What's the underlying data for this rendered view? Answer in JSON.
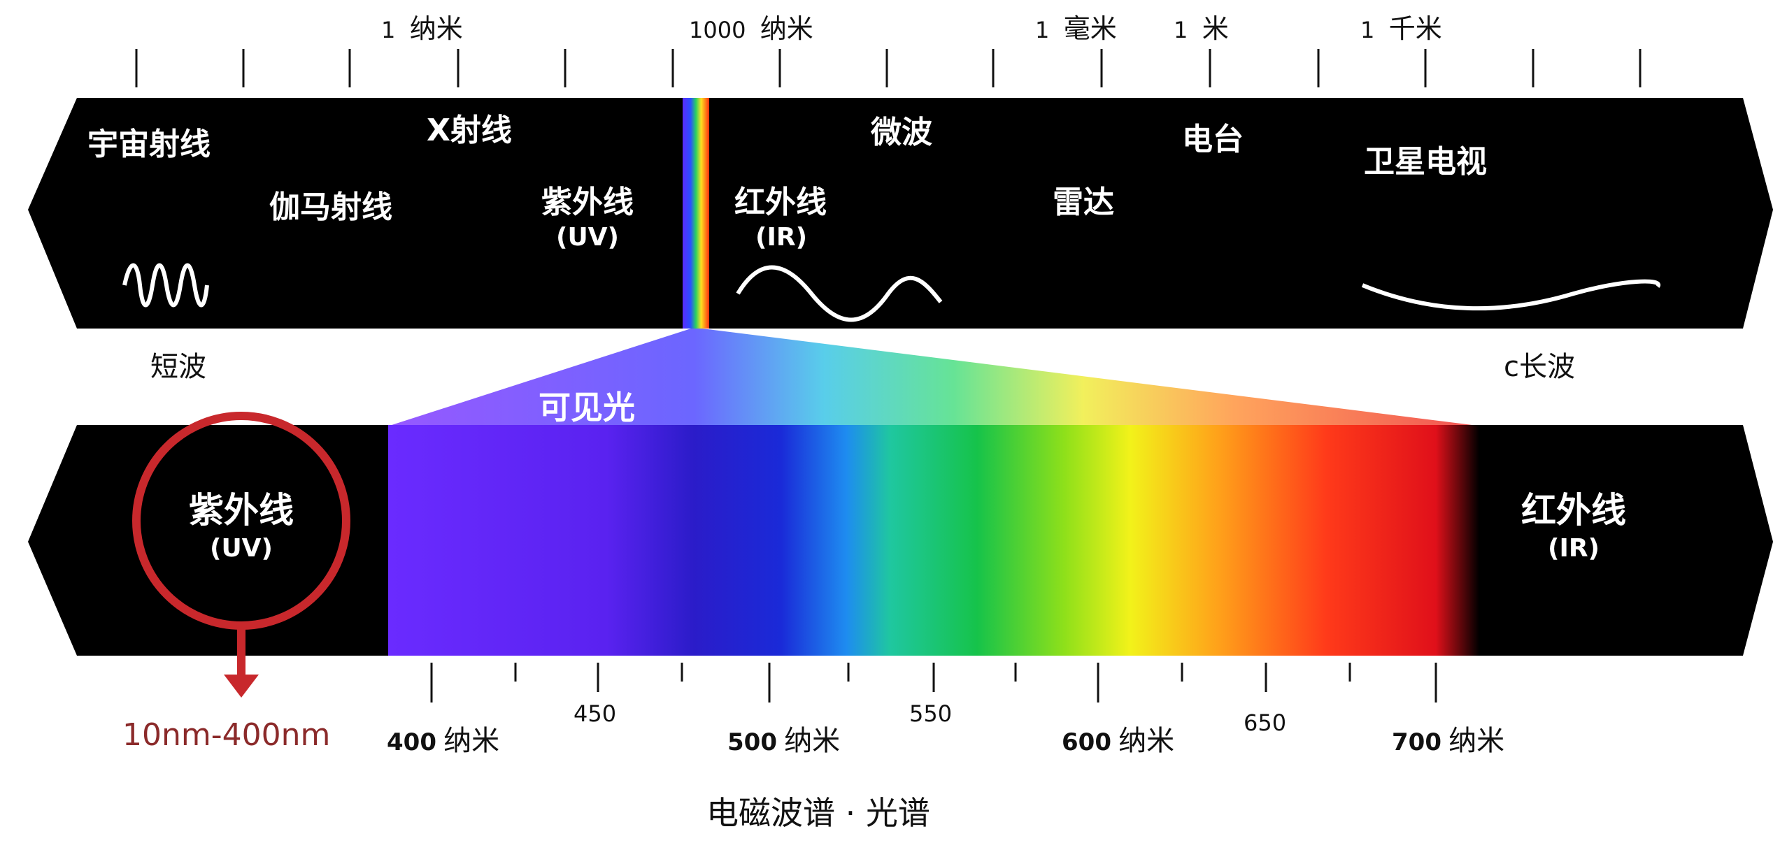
{
  "top_scale": {
    "nm": {
      "num": "1",
      "unit": "纳米"
    },
    "um": {
      "num": "1000",
      "unit": "纳米"
    },
    "mm": {
      "num": "1",
      "unit": "毫米"
    },
    "m": {
      "num": "1",
      "unit": "米"
    },
    "km": {
      "num": "1",
      "unit": "千米"
    }
  },
  "top_band": {
    "cosmic": "宇宙射线",
    "gamma": "伽马射线",
    "xray": "X射线",
    "uv": "紫外线",
    "uv_abbr": "(UV)",
    "ir": "红外线",
    "ir_abbr": "(IR)",
    "microwave": "微波",
    "radar": "雷达",
    "radio": "电台",
    "sat_tv": "卫星电视"
  },
  "ends": {
    "short_wave": "短波",
    "long_wave": "c长波"
  },
  "visible_label": "可见光",
  "bottom_band": {
    "uv": "紫外线",
    "uv_abbr": "(UV)",
    "ir": "红外线",
    "ir_abbr": "(IR)",
    "uv_range": "10nm-400nm"
  },
  "bottom_scale": {
    "t400": {
      "num": "400",
      "unit": "纳米"
    },
    "t450": "450",
    "t500": {
      "num": "500",
      "unit": "纳米"
    },
    "t550": "550",
    "t600": {
      "num": "600",
      "unit": "纳米"
    },
    "t650": "650",
    "t700": {
      "num": "700",
      "unit": "纳米"
    }
  },
  "caption": "电磁波谱 · 光谱",
  "colors": {
    "band": "#000000",
    "uv_circle": "#c8282c",
    "uv_range_text": "#8b2a2a"
  }
}
